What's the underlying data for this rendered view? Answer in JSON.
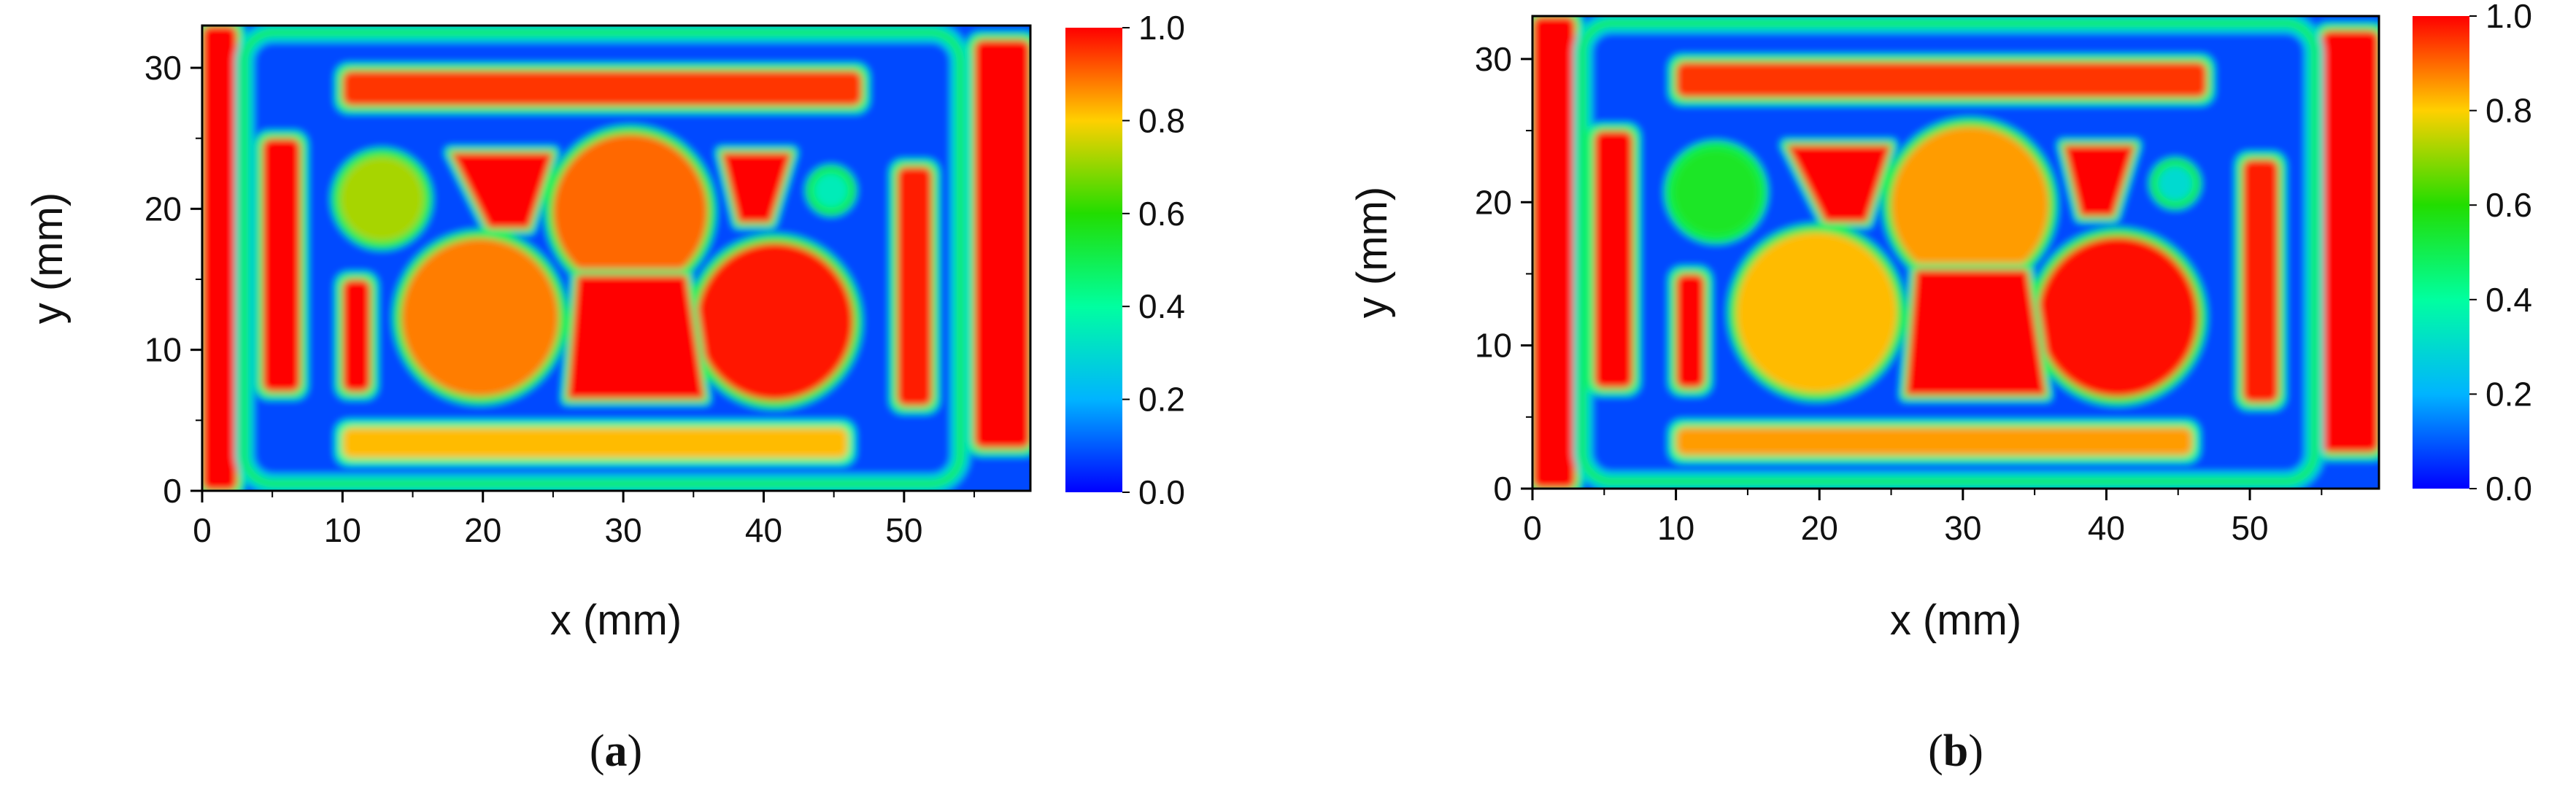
{
  "chart_data": [
    {
      "type": "heatmap",
      "panel_label": "a",
      "xlabel": "x (mm)",
      "ylabel": "y (mm)",
      "xlim": [
        0,
        59
      ],
      "ylim": [
        0,
        33
      ],
      "xticks": [
        0,
        10,
        20,
        30,
        40,
        50
      ],
      "yticks": [
        0,
        10,
        20,
        30
      ],
      "colorbar": {
        "min": 0.0,
        "max": 1.0,
        "ticks": [
          "0.0",
          "0.2",
          "0.4",
          "0.6",
          "0.8",
          "1.0"
        ]
      },
      "background_value": 0.08,
      "regions": [
        {
          "name": "left-edge-band",
          "shape": "rect",
          "x": [
            0,
            2.5
          ],
          "y": [
            0,
            33
          ],
          "value": 1.0
        },
        {
          "name": "right-edge-block",
          "shape": "rect",
          "x": [
            55,
            59
          ],
          "y": [
            3,
            32
          ],
          "value": 1.0
        },
        {
          "name": "frame",
          "shape": "frame",
          "x": [
            3,
            54
          ],
          "y": [
            0.5,
            32.5
          ],
          "value": 0.5
        },
        {
          "name": "top-bar",
          "shape": "rect",
          "x": [
            10,
            47
          ],
          "y": [
            27.3,
            29.8
          ],
          "value": 0.95
        },
        {
          "name": "bottom-bar",
          "shape": "rect",
          "x": [
            10,
            46
          ],
          "y": [
            2.3,
            4.5
          ],
          "value": 0.82
        },
        {
          "name": "left-bar",
          "shape": "rect",
          "x": [
            4.3,
            7
          ],
          "y": [
            7,
            25
          ],
          "value": 1.0
        },
        {
          "name": "right-bar",
          "shape": "rect",
          "x": [
            49.5,
            52
          ],
          "y": [
            6,
            23
          ],
          "value": 0.97
        },
        {
          "name": "inner-left-bar",
          "shape": "rect",
          "x": [
            10,
            12
          ],
          "y": [
            7,
            15
          ],
          "value": 1.0
        },
        {
          "name": "small-circle",
          "shape": "circle",
          "cx": 12.8,
          "cy": 20.7,
          "r": 3.0,
          "value": 0.72
        },
        {
          "name": "tiny-circle",
          "shape": "circle",
          "cx": 44.8,
          "cy": 21.3,
          "r": 1.2,
          "value": 0.35
        },
        {
          "name": "disc-upper-center",
          "shape": "circle",
          "cx": 30.5,
          "cy": 19.8,
          "r": 5.5,
          "value": 0.9
        },
        {
          "name": "disc-lower-left",
          "shape": "circle",
          "cx": 19.8,
          "cy": 12.3,
          "r": 5.6,
          "value": 0.88
        },
        {
          "name": "disc-lower-right",
          "shape": "circle",
          "cx": 40.8,
          "cy": 12.0,
          "r": 5.6,
          "value": 0.98
        },
        {
          "name": "trap-upper-left",
          "shape": "polygon",
          "points": [
            [
              17.7,
              24
            ],
            [
              25,
              24
            ],
            [
              23.3,
              18.6
            ],
            [
              20.4,
              18.6
            ]
          ],
          "value": 1.0
        },
        {
          "name": "trap-upper-right",
          "shape": "polygon",
          "points": [
            [
              37,
              24
            ],
            [
              42,
              24
            ],
            [
              40.5,
              19
            ],
            [
              38.2,
              19
            ]
          ],
          "value": 1.0
        },
        {
          "name": "trap-lower-center",
          "shape": "polygon",
          "points": [
            [
              26.7,
              15.3
            ],
            [
              34.5,
              15.3
            ],
            [
              35.8,
              6.5
            ],
            [
              26,
              6.5
            ]
          ],
          "value": 1.0
        }
      ]
    },
    {
      "type": "heatmap",
      "panel_label": "b",
      "xlabel": "x (mm)",
      "ylabel": "y (mm)",
      "xlim": [
        0,
        59
      ],
      "ylim": [
        0,
        33
      ],
      "xticks": [
        0,
        10,
        20,
        30,
        40,
        50
      ],
      "yticks": [
        0,
        10,
        20,
        30
      ],
      "colorbar": {
        "min": 0.0,
        "max": 1.0,
        "ticks": [
          "0.0",
          "0.2",
          "0.4",
          "0.6",
          "0.8",
          "1.0"
        ]
      },
      "background_value": 0.08,
      "regions": [
        {
          "name": "left-edge-band",
          "shape": "rect",
          "x": [
            0,
            3
          ],
          "y": [
            0,
            33
          ],
          "value": 1.0
        },
        {
          "name": "right-edge-block",
          "shape": "rect",
          "x": [
            55,
            59
          ],
          "y": [
            2.5,
            32
          ],
          "value": 1.0
        },
        {
          "name": "frame",
          "shape": "frame",
          "x": [
            3.5,
            54.5
          ],
          "y": [
            0.5,
            32.5
          ],
          "value": 0.5
        },
        {
          "name": "top-bar",
          "shape": "rect",
          "x": [
            10,
            47
          ],
          "y": [
            27.3,
            29.8
          ],
          "value": 0.95
        },
        {
          "name": "bottom-bar",
          "shape": "rect",
          "x": [
            10,
            46
          ],
          "y": [
            2.3,
            4.3
          ],
          "value": 0.85
        },
        {
          "name": "left-bar",
          "shape": "rect",
          "x": [
            4.3,
            7
          ],
          "y": [
            7,
            25
          ],
          "value": 1.0
        },
        {
          "name": "right-bar",
          "shape": "rect",
          "x": [
            49.5,
            52
          ],
          "y": [
            6,
            23
          ],
          "value": 0.97
        },
        {
          "name": "inner-left-bar",
          "shape": "rect",
          "x": [
            10,
            12
          ],
          "y": [
            7,
            15
          ],
          "value": 1.0
        },
        {
          "name": "small-circle",
          "shape": "circle",
          "cx": 12.8,
          "cy": 20.7,
          "r": 3.0,
          "value": 0.55
        },
        {
          "name": "tiny-circle",
          "shape": "circle",
          "cx": 44.8,
          "cy": 21.3,
          "r": 1.2,
          "value": 0.3
        },
        {
          "name": "disc-upper-center",
          "shape": "circle",
          "cx": 30.5,
          "cy": 19.8,
          "r": 5.5,
          "value": 0.85
        },
        {
          "name": "disc-lower-left",
          "shape": "circle",
          "cx": 19.8,
          "cy": 12.3,
          "r": 5.6,
          "value": 0.82
        },
        {
          "name": "disc-lower-right",
          "shape": "circle",
          "cx": 40.8,
          "cy": 12.0,
          "r": 5.6,
          "value": 0.99
        },
        {
          "name": "trap-upper-left",
          "shape": "polygon",
          "points": [
            [
              17.7,
              24
            ],
            [
              25,
              24
            ],
            [
              23.3,
              18.6
            ],
            [
              20.4,
              18.6
            ]
          ],
          "value": 1.0
        },
        {
          "name": "trap-upper-right",
          "shape": "polygon",
          "points": [
            [
              37,
              24
            ],
            [
              42,
              24
            ],
            [
              40.5,
              19
            ],
            [
              38.2,
              19
            ]
          ],
          "value": 1.0
        },
        {
          "name": "trap-lower-center",
          "shape": "polygon",
          "points": [
            [
              26.7,
              15.3
            ],
            [
              34.5,
              15.3
            ],
            [
              35.8,
              6.5
            ],
            [
              26,
              6.5
            ]
          ],
          "value": 1.0
        }
      ]
    }
  ]
}
